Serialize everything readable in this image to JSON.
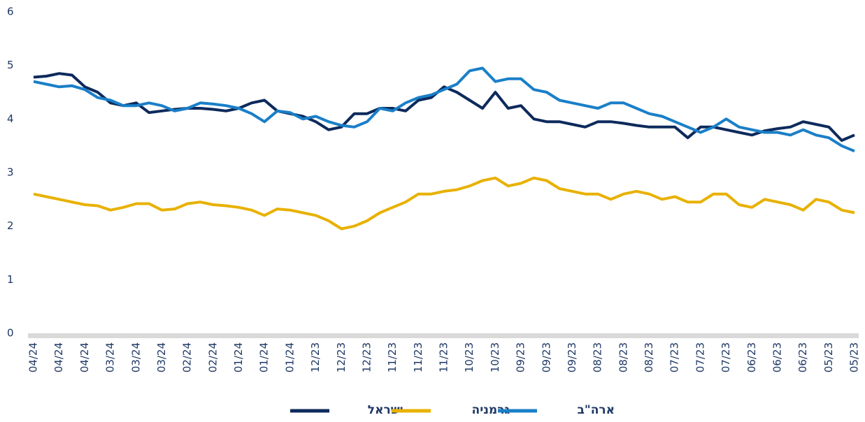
{
  "chart_data": {
    "type": "line",
    "categories": [
      "04/24",
      null,
      "04/24",
      null,
      "04/24",
      null,
      "03/24",
      null,
      "03/24",
      null,
      "03/24",
      null,
      "02/24",
      null,
      "02/24",
      null,
      "01/24",
      null,
      "01/24",
      null,
      "01/24",
      null,
      "12/23",
      null,
      "12/23",
      null,
      "12/23",
      null,
      "11/23",
      null,
      "11/23",
      null,
      "11/23",
      null,
      "10/23",
      null,
      "10/23",
      null,
      "09/23",
      null,
      "09/23",
      null,
      "09/23",
      null,
      "08/23",
      null,
      "08/23",
      null,
      "08/23",
      null,
      "07/23",
      null,
      "07/23",
      null,
      "07/23",
      null,
      "06/23",
      null,
      "06/23",
      null,
      "06/23",
      null,
      "05/23",
      null,
      "05/23"
    ],
    "series": [
      {
        "name": "ישראל",
        "color": "#0d2a5c",
        "values": [
          4.78,
          4.8,
          4.85,
          4.82,
          4.6,
          4.5,
          4.3,
          4.25,
          4.3,
          4.12,
          4.15,
          4.18,
          4.2,
          4.2,
          4.18,
          4.15,
          4.2,
          4.3,
          4.35,
          4.15,
          4.1,
          4.05,
          3.95,
          3.8,
          3.85,
          4.1,
          4.1,
          4.2,
          4.2,
          4.15,
          4.35,
          4.4,
          4.6,
          4.5,
          4.35,
          4.2,
          4.5,
          4.2,
          4.25,
          4.0,
          3.95,
          3.95,
          3.9,
          3.85,
          3.95,
          3.95,
          3.92,
          3.88,
          3.85,
          3.85,
          3.85,
          3.65,
          3.85,
          3.85,
          3.8,
          3.75,
          3.7,
          3.78,
          3.82,
          3.85,
          3.95,
          3.9,
          3.85,
          3.6,
          3.7
        ]
      },
      {
        "name": "גרמניה",
        "color": "#e8b100",
        "values": [
          2.6,
          2.55,
          2.5,
          2.45,
          2.4,
          2.38,
          2.3,
          2.35,
          2.42,
          2.42,
          2.3,
          2.32,
          2.42,
          2.45,
          2.4,
          2.38,
          2.35,
          2.3,
          2.2,
          2.32,
          2.3,
          2.25,
          2.2,
          2.1,
          1.95,
          2.0,
          2.1,
          2.25,
          2.35,
          2.45,
          2.6,
          2.6,
          2.65,
          2.68,
          2.75,
          2.85,
          2.9,
          2.75,
          2.8,
          2.9,
          2.85,
          2.7,
          2.65,
          2.6,
          2.6,
          2.5,
          2.6,
          2.65,
          2.6,
          2.5,
          2.55,
          2.45,
          2.45,
          2.6,
          2.6,
          2.4,
          2.35,
          2.5,
          2.45,
          2.4,
          2.3,
          2.5,
          2.45,
          2.3,
          2.25
        ]
      },
      {
        "name": "ארה\"ב",
        "color": "#1a7fc8",
        "values": [
          4.7,
          4.65,
          4.6,
          4.62,
          4.55,
          4.4,
          4.35,
          4.25,
          4.25,
          4.3,
          4.25,
          4.15,
          4.2,
          4.3,
          4.28,
          4.25,
          4.2,
          4.1,
          3.95,
          4.15,
          4.12,
          4.0,
          4.05,
          3.95,
          3.88,
          3.85,
          3.95,
          4.2,
          4.15,
          4.3,
          4.4,
          4.45,
          4.55,
          4.65,
          4.9,
          4.95,
          4.7,
          4.75,
          4.75,
          4.55,
          4.5,
          4.35,
          4.3,
          4.25,
          4.2,
          4.3,
          4.3,
          4.2,
          4.1,
          4.05,
          3.95,
          3.85,
          3.75,
          3.85,
          4.0,
          3.85,
          3.8,
          3.75,
          3.75,
          3.7,
          3.8,
          3.7,
          3.65,
          3.5,
          3.4
        ]
      }
    ],
    "ylim": [
      0,
      6
    ],
    "yticks": [
      0,
      1,
      2,
      3,
      4,
      5,
      6
    ],
    "grid": false,
    "legend": "bottom"
  }
}
